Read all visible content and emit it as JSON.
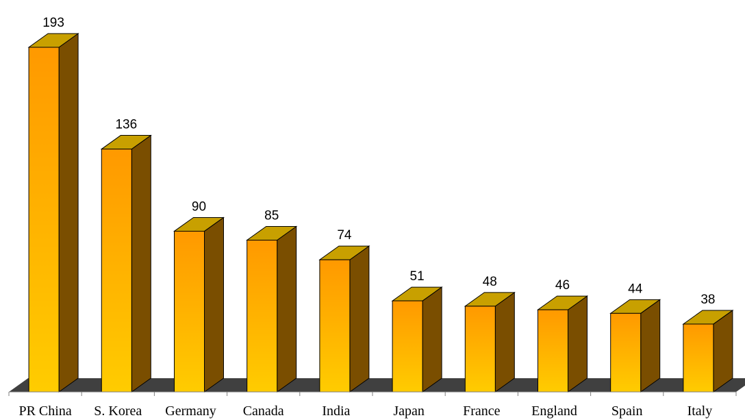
{
  "chart_data": {
    "type": "bar",
    "style": "3d-column",
    "categories": [
      "PR China",
      "S. Korea",
      "Germany",
      "Canada",
      "India",
      "Japan",
      "France",
      "England",
      "Spain",
      "Italy"
    ],
    "values": [
      193,
      136,
      90,
      85,
      74,
      51,
      48,
      46,
      44,
      38
    ],
    "data_labels": [
      "193",
      "136",
      "90",
      "85",
      "74",
      "51",
      "48",
      "46",
      "44",
      "38"
    ],
    "ylim": [
      0,
      200
    ],
    "grid": false,
    "legend": "none",
    "colors": {
      "front_top": "#ff9900",
      "front_bottom": "#ffcc00",
      "top_face": "#c8a000",
      "side_face": "#7a4e00",
      "floor": "#404040",
      "axis": "#7f7f7f"
    }
  }
}
